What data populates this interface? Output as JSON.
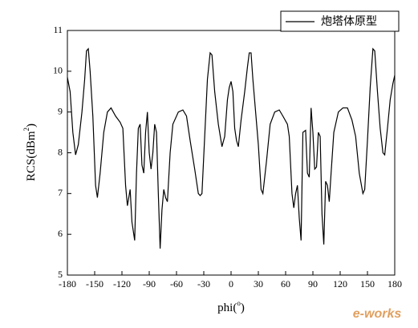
{
  "chart_data": {
    "type": "line",
    "x_label": {
      "text": "phi(",
      "sup": "o",
      "end": ")"
    },
    "y_label": {
      "text": "RCS(dBm",
      "sup": "2",
      "end": ")"
    },
    "watermark": "e-works",
    "legend": "top-right",
    "xlim": [
      -180,
      180
    ],
    "xticks": [
      -180,
      -150,
      -120,
      -90,
      -60,
      -30,
      0,
      30,
      60,
      90,
      120,
      150,
      180
    ],
    "ylim": [
      5,
      11
    ],
    "yticks": [
      5,
      6,
      7,
      8,
      9,
      10,
      11
    ],
    "x": [
      -180,
      -177,
      -174,
      -171,
      -168,
      -164,
      -161,
      -159,
      -157,
      -155,
      -152,
      -149,
      -147,
      -144,
      -140,
      -136,
      -132,
      -127,
      -122,
      -119,
      -116,
      -114,
      -111,
      -109,
      -106,
      -104,
      -102,
      -100,
      -98,
      -96,
      -94,
      -92,
      -90,
      -88,
      -86,
      -84,
      -82,
      -80,
      -78,
      -76,
      -74,
      -72,
      -70,
      -67,
      -64,
      -58,
      -53,
      -49,
      -45,
      -40,
      -36,
      -34,
      -32,
      -29,
      -26,
      -23,
      -21,
      -18,
      -14,
      -10,
      -7,
      -4,
      -2,
      0,
      2,
      4,
      6,
      8,
      11,
      15,
      18,
      20,
      22,
      24,
      27,
      30,
      33,
      35,
      39,
      43,
      48,
      53,
      57,
      62,
      64,
      67,
      69,
      71,
      73,
      75,
      77,
      79,
      82,
      84,
      86,
      88,
      90,
      92,
      94,
      96,
      98,
      100,
      102,
      104,
      106,
      108,
      110,
      113,
      118,
      123,
      128,
      133,
      137,
      141,
      145,
      147,
      150,
      153,
      156,
      158,
      161,
      164,
      167,
      169,
      172,
      175,
      178,
      180
    ],
    "series": [
      {
        "name": "炮塔体原型",
        "color": "#000000",
        "values": [
          9.85,
          9.5,
          8.5,
          7.95,
          8.2,
          9.0,
          9.8,
          10.5,
          10.55,
          10.0,
          8.9,
          7.2,
          6.9,
          7.5,
          8.5,
          9.0,
          9.1,
          8.9,
          8.75,
          8.6,
          7.2,
          6.7,
          7.1,
          6.3,
          5.85,
          7.5,
          8.6,
          8.7,
          7.7,
          7.5,
          8.5,
          9.0,
          8.0,
          7.6,
          8.0,
          8.7,
          8.5,
          7.0,
          5.65,
          6.6,
          7.1,
          6.9,
          6.8,
          8.0,
          8.7,
          9.0,
          9.05,
          8.9,
          8.3,
          7.6,
          7.0,
          6.95,
          7.0,
          8.4,
          9.8,
          10.45,
          10.4,
          9.5,
          8.7,
          8.15,
          8.4,
          9.3,
          9.6,
          9.75,
          9.5,
          8.6,
          8.3,
          8.15,
          8.8,
          9.5,
          10.1,
          10.45,
          10.45,
          9.8,
          9.0,
          8.2,
          7.1,
          7.0,
          7.8,
          8.7,
          9.0,
          9.05,
          8.9,
          8.7,
          8.4,
          7.0,
          6.65,
          7.0,
          7.2,
          6.4,
          5.85,
          8.5,
          8.55,
          7.5,
          7.4,
          9.1,
          8.5,
          7.6,
          7.65,
          8.5,
          8.4,
          6.5,
          5.75,
          7.3,
          7.2,
          6.8,
          7.5,
          8.5,
          9.0,
          9.1,
          9.1,
          8.8,
          8.4,
          7.5,
          7.0,
          7.1,
          8.3,
          9.6,
          10.55,
          10.5,
          9.5,
          8.6,
          8.0,
          7.95,
          8.6,
          9.3,
          9.7,
          9.9
        ]
      }
    ]
  }
}
